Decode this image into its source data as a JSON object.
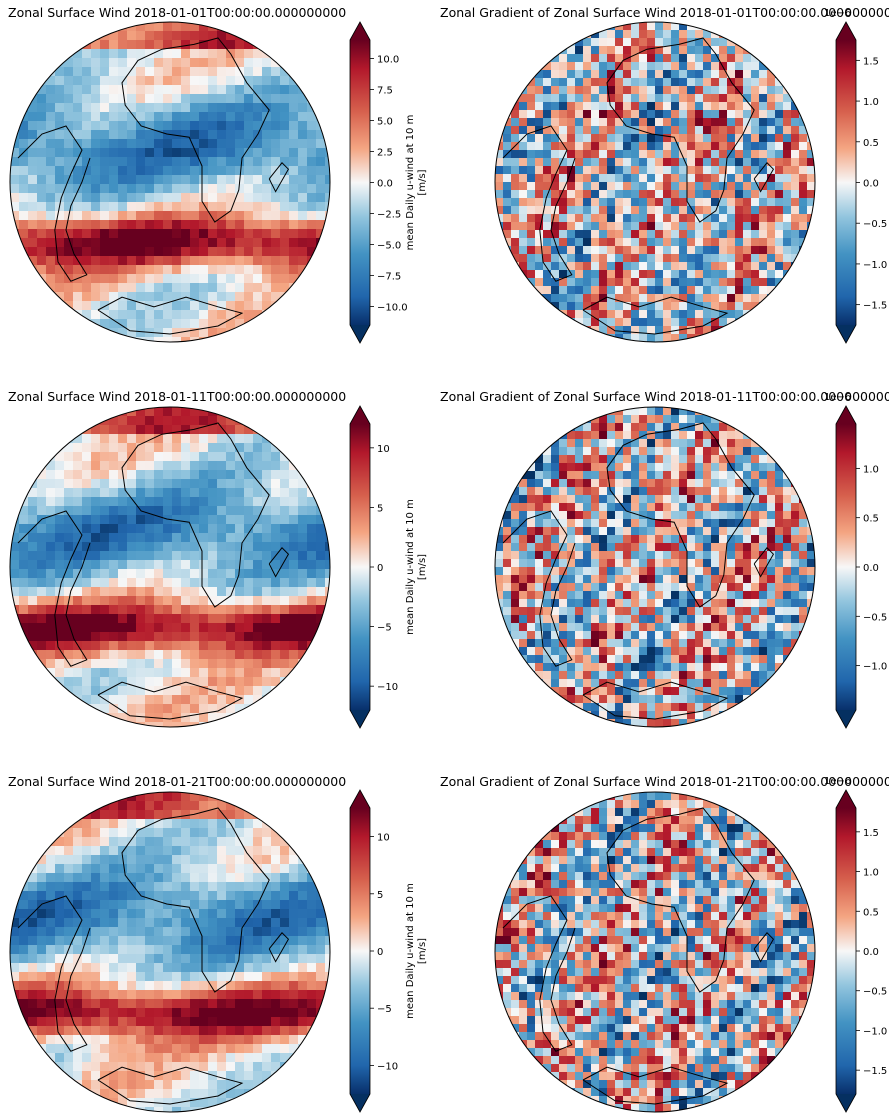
{
  "panels": [
    {
      "title": "Zonal Surface Wind 2018-01-01T00:00:00.000000000",
      "colorbar": {
        "label": "mean Daily u-wind at 10 m",
        "units": "[m/s]",
        "ticks": [
          "10.0",
          "7.5",
          "5.0",
          "2.5",
          "0.0",
          "−2.5",
          "−5.0",
          "−7.5",
          "−10.0"
        ],
        "ticks_values": [
          10,
          7.5,
          5,
          2.5,
          0,
          -2.5,
          -5,
          -7.5,
          -10
        ],
        "vmin": -11.5,
        "vmax": 11.5
      }
    },
    {
      "title": "Zonal Gradient of Zonal Surface Wind 2018-01-01T00:00:00.000000000",
      "colorbar": {
        "label": "",
        "units": "",
        "offset_text": "1e−6",
        "ticks": [
          "1.5",
          "1.0",
          "0.5",
          "0.0",
          "−0.5",
          "−1.0",
          "−1.5"
        ],
        "ticks_values": [
          1.5,
          1.0,
          0.5,
          0,
          -0.5,
          -1.0,
          -1.5
        ],
        "vmin": -1.75,
        "vmax": 1.75
      }
    },
    {
      "title": "Zonal Surface Wind 2018-01-11T00:00:00.000000000",
      "colorbar": {
        "label": "mean Daily u-wind at 10 m",
        "units": "[m/s]",
        "ticks": [
          "10",
          "5",
          "0",
          "−5",
          "−10"
        ],
        "ticks_values": [
          10,
          5,
          0,
          -5,
          -10
        ],
        "vmin": -12,
        "vmax": 12
      }
    },
    {
      "title": "Zonal Gradient of Zonal Surface Wind 2018-01-11T00:00:00.000000000",
      "colorbar": {
        "label": "",
        "units": "",
        "offset_text": "1e−6",
        "ticks": [
          "1.0",
          "0.5",
          "0.0",
          "−0.5",
          "−1.0"
        ],
        "ticks_values": [
          1.0,
          0.5,
          0,
          -0.5,
          -1.0
        ],
        "vmin": -1.45,
        "vmax": 1.45
      }
    },
    {
      "title": "Zonal Surface Wind 2018-01-21T00:00:00.000000000",
      "colorbar": {
        "label": "mean Daily u-wind at 10 m",
        "units": "[m/s]",
        "ticks": [
          "10",
          "5",
          "0",
          "−5",
          "−10"
        ],
        "ticks_values": [
          10,
          5,
          0,
          -5,
          -10
        ],
        "vmin": -12.5,
        "vmax": 12.5
      }
    },
    {
      "title": "Zonal Gradient of Zonal Surface Wind 2018-01-21T00:00:00.000000000",
      "colorbar": {
        "label": "",
        "units": "",
        "offset_text": "1e−6",
        "ticks": [
          "1.5",
          "1.0",
          "0.5",
          "0.0",
          "−0.5",
          "−1.0",
          "−1.5"
        ],
        "ticks_values": [
          1.5,
          1.0,
          0.5,
          0,
          -0.5,
          -1.0,
          -1.5
        ],
        "vmin": -1.8,
        "vmax": 1.8
      }
    }
  ],
  "colormap": {
    "name": "RdBu_r",
    "low": "#053061",
    "mid": "#f7f7f7",
    "high": "#67001f"
  },
  "coastline_color": "#000000"
}
